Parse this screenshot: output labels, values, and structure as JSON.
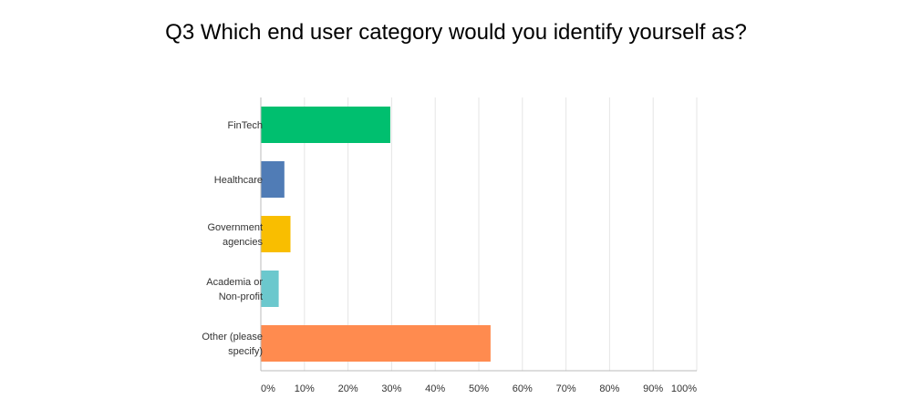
{
  "chart_data": {
    "type": "bar",
    "orientation": "horizontal",
    "title": "Q3 Which end user category would you identify yourself as?",
    "categories": [
      [
        "FinTech"
      ],
      [
        "Healthcare"
      ],
      [
        "Government",
        "agencies"
      ],
      [
        "Academia or",
        "Non-profit"
      ],
      [
        "Other (please",
        "specify)"
      ]
    ],
    "values": [
      29.7,
      5.4,
      6.8,
      4.1,
      52.7
    ],
    "unit": "%",
    "colors": [
      "#00bf6f",
      "#507cb6",
      "#f9be00",
      "#6bc8cd",
      "#ff8b4f"
    ],
    "xlim": [
      0,
      100
    ],
    "xticks": [
      "0%",
      "10%",
      "20%",
      "30%",
      "40%",
      "50%",
      "60%",
      "70%",
      "80%",
      "90%",
      "100%"
    ],
    "grid": true,
    "legend": "none"
  }
}
